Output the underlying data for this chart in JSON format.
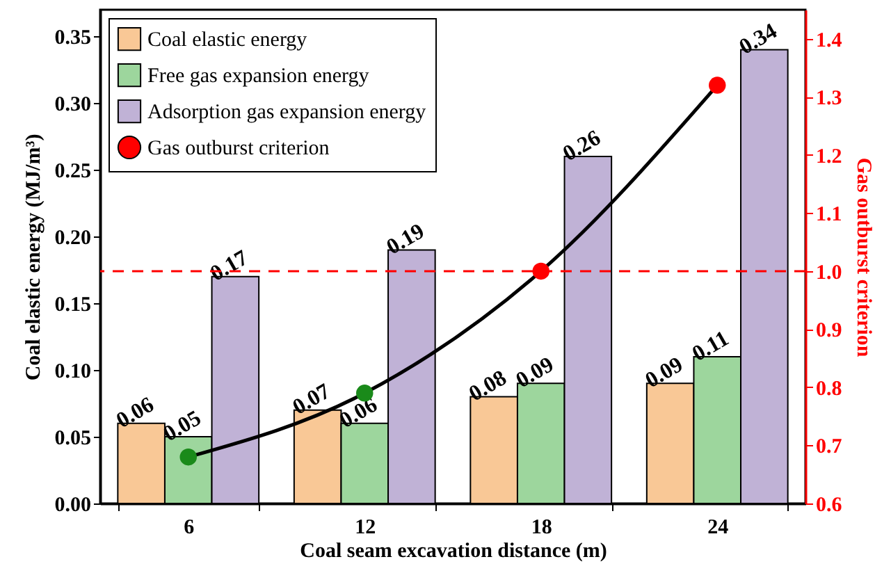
{
  "chart_data": {
    "type": "bar",
    "xlabel": "Coal seam excavation distance (m)",
    "ylabel": "Coal elastic energy (MJ/m³)",
    "y2label": "Gas outburst criterion",
    "categories": [
      "6",
      "12",
      "18",
      "24"
    ],
    "series": [
      {
        "name": "Coal elastic energy",
        "color": "#f9c896",
        "values": [
          0.06,
          0.07,
          0.08,
          0.09
        ],
        "value_labels": [
          "0.06",
          "0.07",
          "0.08",
          "0.09"
        ]
      },
      {
        "name": "Free gas expansion energy",
        "color": "#9dd69d",
        "values": [
          0.05,
          0.06,
          0.09,
          0.11
        ],
        "value_labels": [
          "0.05",
          "0.06",
          "0.09",
          "0.11"
        ]
      },
      {
        "name": "Adsorption gas expansion energy",
        "color": "#c0b2d6",
        "values": [
          0.17,
          0.19,
          0.26,
          0.34
        ],
        "value_labels": [
          "0.17",
          "0.19",
          "0.26",
          "0.34"
        ]
      },
      {
        "name": "Gas outburst criterion",
        "type": "line",
        "axis": "y2",
        "color": "#000000",
        "colors": [
          "#1a8a1a",
          "#1a8a1a",
          "#ff0000",
          "#ff0000"
        ],
        "values": [
          0.68,
          0.79,
          1.0,
          1.32
        ]
      }
    ],
    "ylim": [
      0,
      0.37
    ],
    "yticks": [
      {
        "value": 0,
        "label": "0.00"
      },
      0.05,
      {
        "value": 0.1,
        "label": "0.10"
      },
      0.15,
      {
        "value": 0.2,
        "label": "0.20"
      },
      0.25,
      {
        "value": 0.3,
        "label": "0.30"
      },
      0.35
    ],
    "y2lim": [
      0.6,
      1.45
    ],
    "y2ticks": [
      0.6,
      0.7,
      0.8,
      0.9,
      {
        "value": 1,
        "label": "1.0"
      },
      1.1,
      1.2,
      1.3,
      1.4
    ],
    "ref_lines": [
      {
        "axis": "y2",
        "value": 1,
        "color": "#ff0000",
        "line_style": "dashed"
      }
    ],
    "legend": "top left",
    "marker": "circle"
  }
}
